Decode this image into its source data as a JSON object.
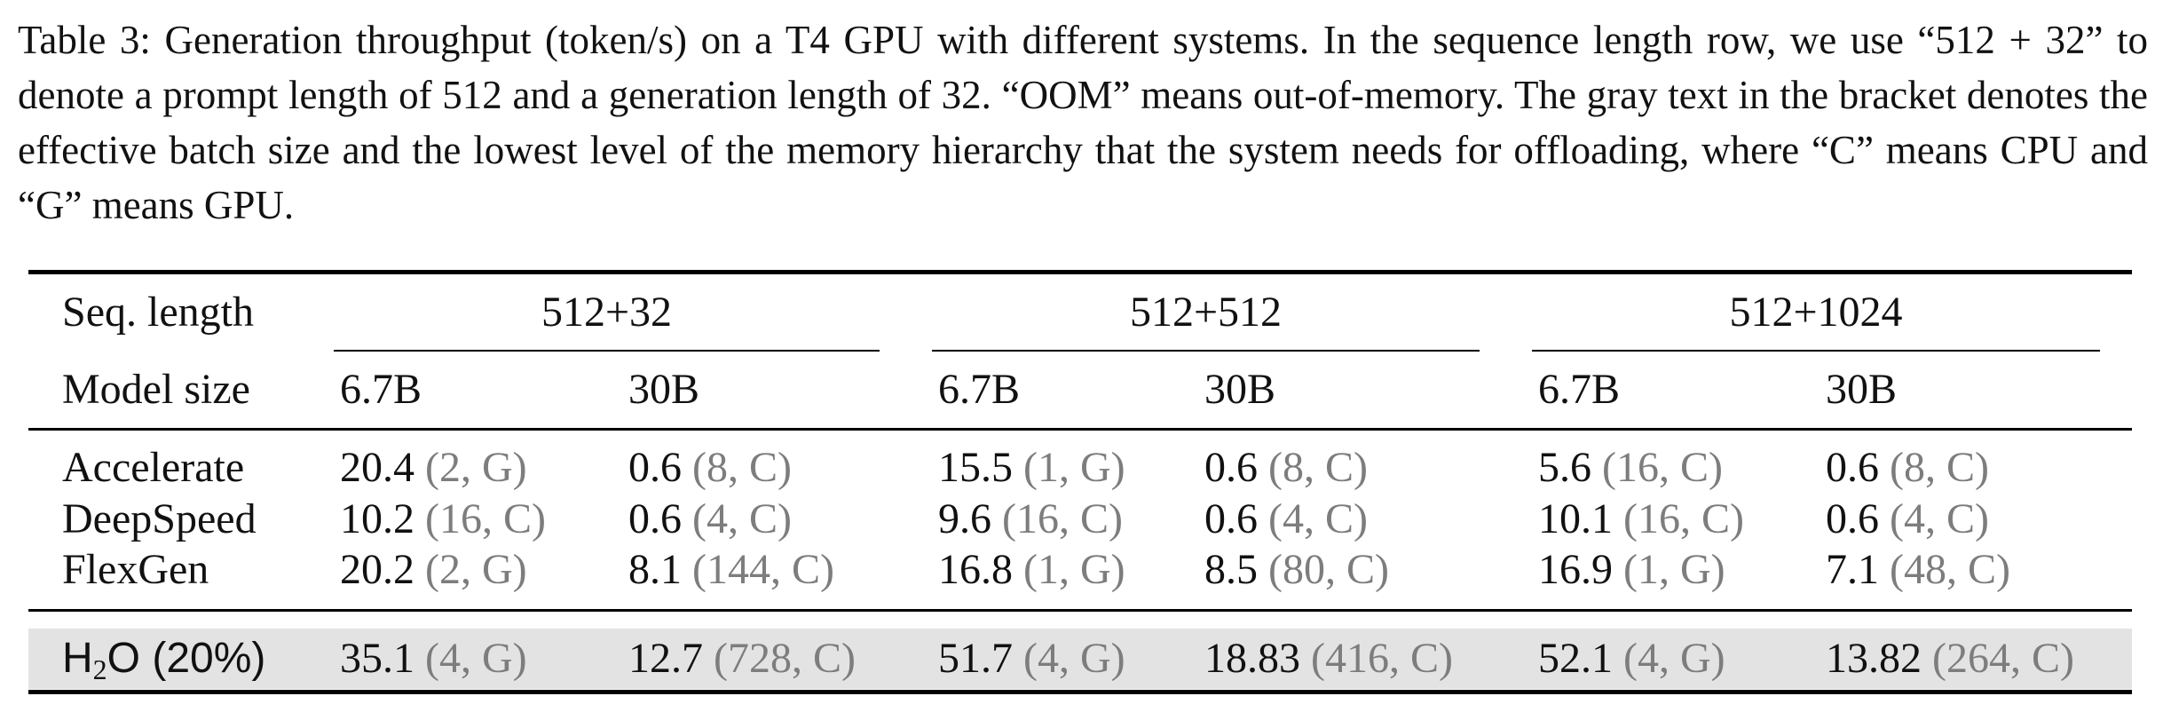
{
  "caption": "Table 3: Generation throughput (token/s) on a T4 GPU with different systems. In the sequence length row, we use “512 + 32” to denote a prompt length of 512 and a generation length of 32. “OOM” means out-of-memory. The gray text in the bracket denotes the effective batch size and the lowest level of the memory hierarchy that the system needs for offloading, where “C” means CPU and “G” means GPU.",
  "table": {
    "seq_length_label": "Seq. length",
    "model_size_label": "Model size",
    "seq_groups": [
      "512+32",
      "512+512",
      "512+1024"
    ],
    "model_sizes": [
      "6.7B",
      "30B",
      "6.7B",
      "30B",
      "6.7B",
      "30B"
    ],
    "rows": [
      {
        "system": "Accelerate",
        "cells": [
          {
            "v": "20.4",
            "note": "(2, G)"
          },
          {
            "v": "0.6",
            "note": "(8, C)"
          },
          {
            "v": "15.5",
            "note": "(1, G)"
          },
          {
            "v": "0.6",
            "note": "(8, C)"
          },
          {
            "v": "5.6",
            "note": "(16, C)"
          },
          {
            "v": "0.6",
            "note": "(8, C)"
          }
        ]
      },
      {
        "system": "DeepSpeed",
        "cells": [
          {
            "v": "10.2",
            "note": "(16, C)"
          },
          {
            "v": "0.6",
            "note": "(4, C)"
          },
          {
            "v": "9.6",
            "note": "(16, C)"
          },
          {
            "v": "0.6",
            "note": "(4, C)"
          },
          {
            "v": "10.1",
            "note": "(16, C)"
          },
          {
            "v": "0.6",
            "note": "(4, C)"
          }
        ]
      },
      {
        "system": "FlexGen",
        "cells": [
          {
            "v": "20.2",
            "note": "(2, G)"
          },
          {
            "v": "8.1",
            "note": "(144, C)"
          },
          {
            "v": "16.8",
            "note": "(1, G)"
          },
          {
            "v": "8.5",
            "note": "(80, C)"
          },
          {
            "v": "16.9",
            "note": "(1, G)"
          },
          {
            "v": "7.1",
            "note": "(48, C)"
          }
        ]
      }
    ],
    "highlight_row": {
      "system_main": "H",
      "system_sub": "2",
      "system_rest": "O (20%)",
      "cells": [
        {
          "v": "35.1",
          "note": "(4, G)"
        },
        {
          "v": "12.7",
          "note": "(728, C)"
        },
        {
          "v": "51.7",
          "note": "(4, G)"
        },
        {
          "v": "18.83",
          "note": "(416, C)"
        },
        {
          "v": "52.1",
          "note": "(4, G)"
        },
        {
          "v": "13.82",
          "note": "(264, C)"
        }
      ]
    },
    "highlight_color": "#e3e3e3",
    "note_color": "#7d7d7d"
  }
}
